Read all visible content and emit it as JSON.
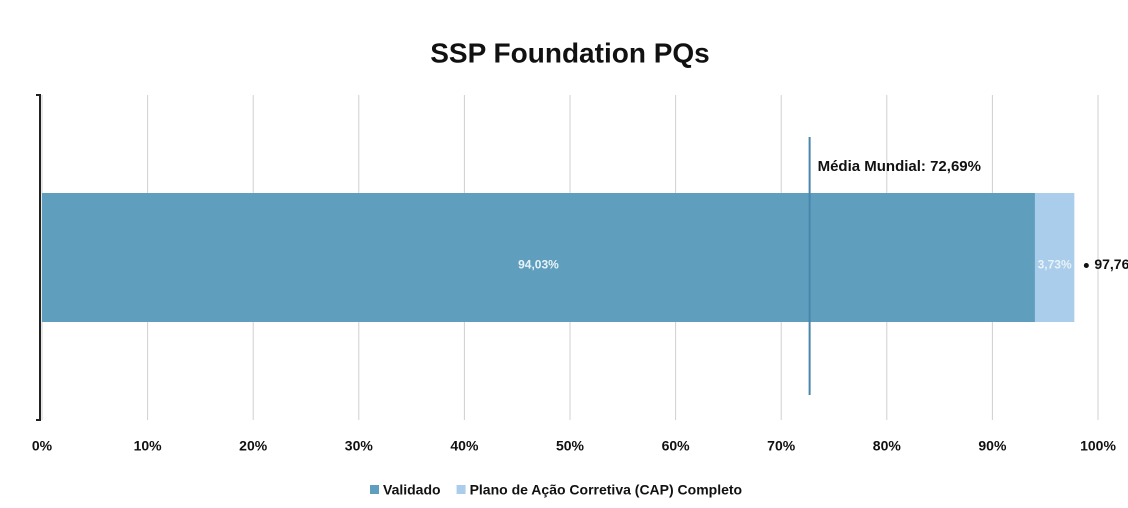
{
  "chart_data": {
    "type": "stacked_bar_horizontal",
    "title": "SSP Foundation PQs",
    "categories": [
      null
    ],
    "series": [
      {
        "name": "Validado",
        "color": "#5f9fbd",
        "values": [
          94.03
        ],
        "value_labels": [
          "94,03%"
        ]
      },
      {
        "name": "Plano de Ação Corretiva (CAP) Completo",
        "color": "#a9cdea",
        "values": [
          3.73
        ],
        "value_labels": [
          "3,73%"
        ]
      }
    ],
    "totals": [
      97.76
    ],
    "total_labels": [
      "97,76"
    ],
    "reference_line": {
      "value": 72.69,
      "label": "Média Mundial: 72,69%",
      "color": "#4a86ab"
    },
    "xlim": [
      0,
      100
    ],
    "xticks": [
      {
        "value": 0,
        "label": "0%"
      },
      {
        "value": 10,
        "label": "10%"
      },
      {
        "value": 20,
        "label": "20%"
      },
      {
        "value": 30,
        "label": "30%"
      },
      {
        "value": 40,
        "label": "40%"
      },
      {
        "value": 50,
        "label": "50%"
      },
      {
        "value": 60,
        "label": "60%"
      },
      {
        "value": 70,
        "label": "70%"
      },
      {
        "value": 80,
        "label": "80%"
      },
      {
        "value": 90,
        "label": "90%"
      },
      {
        "value": 100,
        "label": "100%"
      }
    ],
    "grid": true,
    "legend": "bottom"
  }
}
